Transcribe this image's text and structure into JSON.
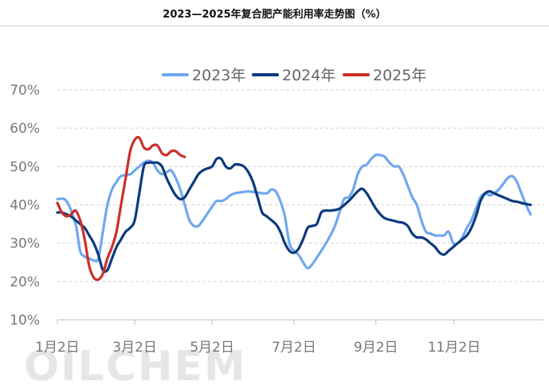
{
  "title": "2023—2025年复合肥产能利用率走势图（%）",
  "watermark": "OILCHEM",
  "chart_data": {
    "type": "line",
    "title": "2023—2025年复合肥产能利用率走势图（%）",
    "xlabel": "",
    "ylabel": "",
    "ylim": [
      10,
      70
    ],
    "yticks": [
      "10%",
      "20%",
      "30%",
      "40%",
      "50%",
      "60%",
      "70%"
    ],
    "ytick_values": [
      10,
      20,
      30,
      40,
      50,
      60,
      70
    ],
    "xticks": [
      {
        "label": "1月2日",
        "week": 0
      },
      {
        "label": "3月2日",
        "week": 8.5
      },
      {
        "label": "5月2日",
        "week": 17
      },
      {
        "label": "7月2日",
        "week": 26
      },
      {
        "label": "9月2日",
        "week": 35
      },
      {
        "label": "11月2日",
        "week": 43.6
      }
    ],
    "xlim": [
      0,
      53.5
    ],
    "grid": true,
    "legend_position": "top",
    "series": [
      {
        "name": "2023年",
        "color": "#6fa8f0",
        "points": [
          [
            0,
            41.5
          ],
          [
            1,
            41
          ],
          [
            2,
            35
          ],
          [
            2.5,
            28
          ],
          [
            3,
            26.5
          ],
          [
            3.5,
            26
          ],
          [
            4,
            25.5
          ],
          [
            4.5,
            26
          ],
          [
            5,
            33
          ],
          [
            5.5,
            40
          ],
          [
            6,
            44
          ],
          [
            6.5,
            46
          ],
          [
            7,
            47.5
          ],
          [
            8,
            48
          ],
          [
            8.5,
            49
          ],
          [
            9,
            50
          ],
          [
            9.5,
            51
          ],
          [
            10,
            51.5
          ],
          [
            10.5,
            51
          ],
          [
            11,
            49
          ],
          [
            11.5,
            48
          ],
          [
            12,
            48.5
          ],
          [
            12.5,
            49
          ],
          [
            13,
            47
          ],
          [
            13.5,
            44
          ],
          [
            14,
            40
          ],
          [
            14.5,
            36
          ],
          [
            15,
            34.5
          ],
          [
            15.5,
            34.5
          ],
          [
            16,
            36
          ],
          [
            17,
            39.5
          ],
          [
            17.5,
            41
          ],
          [
            18,
            41
          ],
          [
            18.5,
            41.5
          ],
          [
            19,
            42.5
          ],
          [
            19.5,
            43
          ],
          [
            20,
            43.2
          ],
          [
            21,
            43.5
          ],
          [
            22,
            43.2
          ],
          [
            23,
            43
          ],
          [
            23.5,
            44
          ],
          [
            24,
            43.5
          ],
          [
            24.5,
            41
          ],
          [
            25,
            37
          ],
          [
            25.5,
            30
          ],
          [
            26,
            28
          ],
          [
            26.5,
            27
          ],
          [
            27,
            25
          ],
          [
            27.5,
            23.5
          ],
          [
            28,
            24.5
          ],
          [
            29,
            28
          ],
          [
            30,
            32
          ],
          [
            30.5,
            34.5
          ],
          [
            31,
            38
          ],
          [
            31.5,
            41.5
          ],
          [
            32,
            42
          ],
          [
            32.5,
            44
          ],
          [
            33,
            48
          ],
          [
            33.5,
            50
          ],
          [
            34,
            50.5
          ],
          [
            34.5,
            52
          ],
          [
            35,
            53
          ],
          [
            35.5,
            53
          ],
          [
            36,
            52.5
          ],
          [
            36.5,
            51
          ],
          [
            37,
            50
          ],
          [
            37.5,
            50
          ],
          [
            38,
            48
          ],
          [
            38.5,
            45
          ],
          [
            39,
            42
          ],
          [
            39.5,
            40
          ],
          [
            40,
            36
          ],
          [
            40.5,
            33
          ],
          [
            41,
            32.5
          ],
          [
            41.5,
            32
          ],
          [
            42,
            32
          ],
          [
            42.5,
            32
          ],
          [
            43,
            33
          ],
          [
            43.5,
            30
          ],
          [
            44,
            30
          ],
          [
            44.5,
            31.5
          ],
          [
            45,
            34
          ],
          [
            45.5,
            36
          ],
          [
            46,
            39
          ],
          [
            46.5,
            42
          ],
          [
            47,
            43
          ],
          [
            47.5,
            42.5
          ],
          [
            48,
            43
          ],
          [
            48.5,
            44
          ],
          [
            49,
            45.5
          ],
          [
            49.5,
            47
          ],
          [
            50,
            47.5
          ],
          [
            50.5,
            46
          ],
          [
            51,
            43
          ],
          [
            51.5,
            40
          ],
          [
            52,
            37.5
          ]
        ]
      },
      {
        "name": "2024年",
        "color": "#0c3a7c",
        "points": [
          [
            0,
            38
          ],
          [
            0.5,
            38
          ],
          [
            1,
            37.5
          ],
          [
            1.5,
            37
          ],
          [
            2,
            36
          ],
          [
            2.5,
            35
          ],
          [
            3,
            34
          ],
          [
            3.5,
            32
          ],
          [
            4,
            30
          ],
          [
            4.5,
            27
          ],
          [
            5,
            23
          ],
          [
            5.5,
            23
          ],
          [
            6,
            26
          ],
          [
            6.5,
            29
          ],
          [
            7,
            31
          ],
          [
            7.5,
            33
          ],
          [
            8,
            34
          ],
          [
            8.5,
            36
          ],
          [
            9,
            43
          ],
          [
            9.5,
            50
          ],
          [
            10,
            51
          ],
          [
            10.5,
            51
          ],
          [
            11,
            51
          ],
          [
            11.5,
            50
          ],
          [
            12,
            47
          ],
          [
            12.5,
            44.5
          ],
          [
            13,
            42.5
          ],
          [
            13.5,
            41.5
          ],
          [
            14,
            42
          ],
          [
            14.5,
            44
          ],
          [
            15,
            46
          ],
          [
            15.5,
            48
          ],
          [
            16,
            49
          ],
          [
            16.5,
            49.5
          ],
          [
            17,
            50
          ],
          [
            17.5,
            52
          ],
          [
            18,
            52
          ],
          [
            18.5,
            50
          ],
          [
            19,
            49.5
          ],
          [
            19.5,
            50.5
          ],
          [
            20,
            50.5
          ],
          [
            20.5,
            50
          ],
          [
            21,
            48.5
          ],
          [
            21.5,
            46
          ],
          [
            22,
            42
          ],
          [
            22.5,
            38
          ],
          [
            23,
            37
          ],
          [
            24,
            35
          ],
          [
            24.5,
            33
          ],
          [
            25,
            30
          ],
          [
            25.5,
            28
          ],
          [
            26,
            27.5
          ],
          [
            26.5,
            28.5
          ],
          [
            27,
            31
          ],
          [
            27.5,
            34
          ],
          [
            28,
            34.5
          ],
          [
            28.5,
            35
          ],
          [
            29,
            38
          ],
          [
            29.5,
            38.5
          ],
          [
            30,
            38.5
          ],
          [
            31,
            39
          ],
          [
            32,
            41
          ],
          [
            33,
            43.5
          ],
          [
            33.5,
            44.2
          ],
          [
            34,
            43
          ],
          [
            34.5,
            41
          ],
          [
            35,
            39
          ],
          [
            35.5,
            37.5
          ],
          [
            36,
            36.5
          ],
          [
            37,
            35.8
          ],
          [
            37.5,
            35.5
          ],
          [
            38,
            35.3
          ],
          [
            38.5,
            34.5
          ],
          [
            39,
            32.5
          ],
          [
            39.5,
            31.5
          ],
          [
            40,
            31.5
          ],
          [
            40.5,
            31
          ],
          [
            41,
            30
          ],
          [
            41.5,
            29
          ],
          [
            42,
            27.5
          ],
          [
            42.5,
            27
          ],
          [
            43,
            28
          ],
          [
            43.5,
            29
          ],
          [
            44,
            30
          ],
          [
            44.5,
            31
          ],
          [
            45,
            32
          ],
          [
            45.5,
            34
          ],
          [
            46,
            37
          ],
          [
            46.5,
            41
          ],
          [
            47,
            43
          ],
          [
            47.5,
            43.5
          ],
          [
            48,
            43
          ],
          [
            48.5,
            42.5
          ],
          [
            49,
            42
          ],
          [
            49.5,
            41.5
          ],
          [
            50,
            41
          ],
          [
            50.5,
            40.8
          ],
          [
            51,
            40.5
          ],
          [
            51.5,
            40.2
          ],
          [
            52,
            40
          ]
        ]
      },
      {
        "name": "2025年",
        "color": "#cc2f2a",
        "points": [
          [
            0,
            40.5
          ],
          [
            0.5,
            38
          ],
          [
            1,
            37
          ],
          [
            1.5,
            37.5
          ],
          [
            2,
            38.5
          ],
          [
            2.5,
            36
          ],
          [
            3,
            31
          ],
          [
            3.5,
            24
          ],
          [
            4,
            21
          ],
          [
            4.5,
            20.5
          ],
          [
            5,
            22
          ],
          [
            5.5,
            26
          ],
          [
            6,
            29
          ],
          [
            6.5,
            33
          ],
          [
            7,
            40
          ],
          [
            7.5,
            47
          ],
          [
            8,
            54
          ],
          [
            8.5,
            57
          ],
          [
            9,
            57.5
          ],
          [
            9.5,
            55
          ],
          [
            10,
            54.5
          ],
          [
            10.5,
            55.5
          ],
          [
            11,
            55.5
          ],
          [
            11.5,
            53.5
          ],
          [
            12,
            53
          ],
          [
            12.5,
            54
          ],
          [
            13,
            54
          ],
          [
            13.5,
            53
          ],
          [
            14,
            52.5
          ]
        ]
      }
    ]
  }
}
